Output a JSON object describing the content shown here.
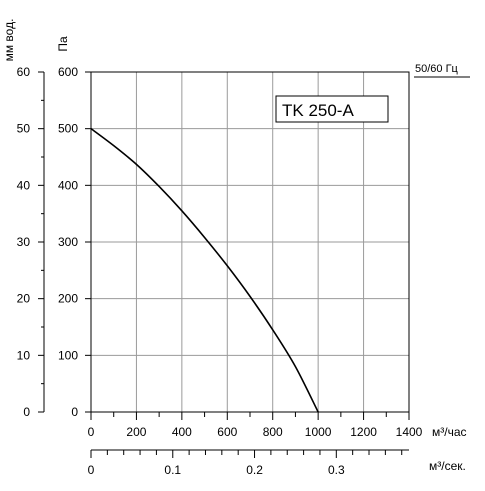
{
  "chart_data": {
    "type": "line",
    "title": "TK 250-A",
    "frequency_label": "50/60 Гц",
    "left_axis": {
      "label": "мм вод.",
      "ticks": [
        "60",
        "50",
        "40",
        "30",
        "20",
        "10",
        "0"
      ],
      "ylim": [
        0,
        60
      ]
    },
    "y_axis": {
      "label": "Па",
      "ticks": [
        "600",
        "500",
        "400",
        "300",
        "200",
        "100",
        "0"
      ],
      "ylim": [
        0,
        600
      ]
    },
    "x_axis": {
      "label": "м³/час",
      "ticks": [
        "0",
        "200",
        "400",
        "600",
        "800",
        "1000",
        "1200",
        "1400"
      ],
      "xlim": [
        0,
        1400
      ]
    },
    "x2_axis": {
      "label": "м³/сек.",
      "ticks": [
        "0",
        "0.1",
        "0.2",
        "0.3"
      ],
      "xlim": [
        0,
        0.3889
      ]
    },
    "grid": true,
    "series": [
      {
        "x": [
          0,
          100,
          200,
          300,
          400,
          500,
          600,
          700,
          800,
          900,
          1000
        ],
        "y": [
          500,
          470,
          437,
          398,
          355,
          308,
          258,
          204,
          145,
          80,
          0
        ]
      }
    ]
  }
}
